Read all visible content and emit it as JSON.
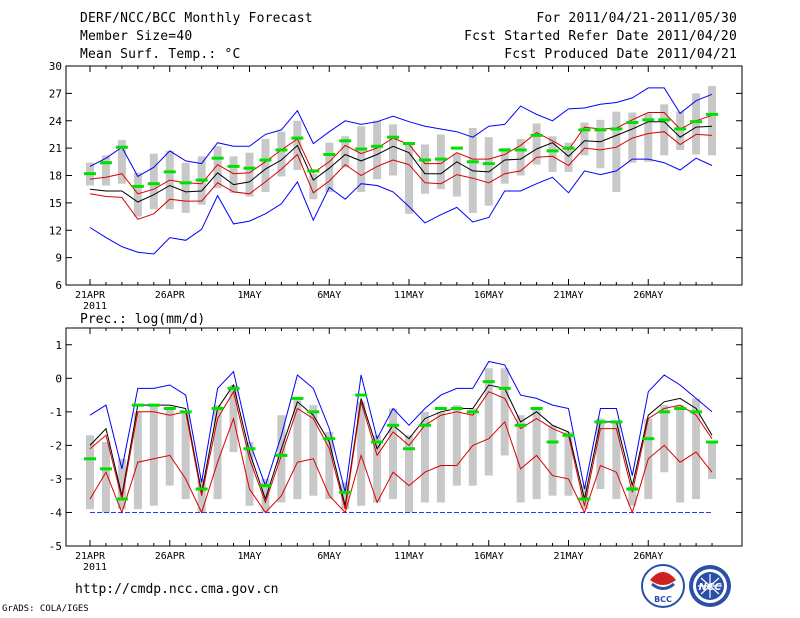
{
  "header": {
    "title": "DERF/NCC/BCC Monthly Forecast",
    "member_size": "Member Size=40",
    "variable": "Mean Surf. Temp.: °C",
    "period": "For 2011/04/21-2011/05/30",
    "started": "Fcst Started Refer Date 2011/04/20",
    "produced": "Fcst Produced Date 2011/04/21"
  },
  "footer": {
    "url": "http://cmdp.ncc.cma.gov.cn",
    "credit": "GrADS: COLA/IGES"
  },
  "logos": {
    "bcc": "BCC",
    "ncc": "NCC"
  },
  "colors": {
    "max_line": "#0000ff",
    "mean_line": "#000000",
    "spread_line": "#dc0000",
    "median_mark": "#00e000",
    "box": "#c8c8c8"
  },
  "chart_data": [
    {
      "type": "line",
      "name": "temperature",
      "ylabel": "Mean Surf. Temp.: °C",
      "ylim": [
        6,
        30
      ],
      "yticks": [
        6,
        9,
        12,
        15,
        18,
        21,
        24,
        27,
        30
      ],
      "xticks": [
        "21APR",
        "26APR",
        "1MAY",
        "6MAY",
        "11MAY",
        "16MAY",
        "21MAY",
        "26MAY"
      ],
      "xtick_days": [
        0,
        5,
        10,
        15,
        20,
        25,
        30,
        35
      ],
      "year_label": "2011",
      "days": 40,
      "series": [
        {
          "name": "max",
          "values": [
            12.3,
            11.2,
            10.2,
            9.6,
            9.4,
            11.2,
            10.9,
            12.1,
            15.8,
            12.7,
            13.0,
            13.8,
            14.9,
            17.3,
            13.1,
            16.7,
            15.4,
            17.1,
            16.9,
            16.2,
            14.6,
            12.8,
            13.7,
            14.5,
            12.9,
            13.4,
            16.3,
            16.3,
            17.1,
            17.8,
            16.1,
            18.5,
            18.1,
            18.5,
            19.8,
            19.8,
            19.4,
            18.6,
            19.9,
            19.1
          ]
        },
        {
          "name": "upper",
          "values": [
            19.0,
            19.9,
            21.1,
            17.9,
            18.9,
            20.7,
            19.6,
            19.3,
            21.6,
            21.2,
            21.2,
            22.5,
            23.0,
            25.1,
            21.5,
            22.8,
            24.0,
            23.6,
            23.9,
            24.5,
            23.9,
            23.4,
            23.1,
            22.8,
            22.2,
            23.4,
            23.6,
            25.6,
            24.7,
            24.0,
            25.3,
            25.4,
            25.8,
            26.0,
            26.5,
            27.6,
            27.6,
            24.8,
            26.2,
            26.9
          ]
        },
        {
          "name": "mean_plus",
          "values": [
            17.6,
            17.8,
            18.2,
            16.0,
            16.5,
            17.5,
            17.2,
            17.1,
            19.2,
            18.2,
            18.3,
            19.5,
            20.8,
            22.0,
            18.3,
            19.5,
            21.3,
            20.4,
            21.0,
            22.1,
            21.4,
            19.3,
            19.3,
            20.5,
            19.8,
            19.8,
            20.3,
            21.3,
            22.7,
            21.8,
            20.8,
            23.3,
            23.1,
            23.2,
            24.1,
            24.9,
            24.9,
            23.1,
            24.0,
            24.6
          ]
        },
        {
          "name": "mean",
          "values": [
            16.5,
            16.3,
            16.3,
            15.1,
            15.9,
            16.9,
            16.2,
            16.3,
            18.3,
            17.0,
            17.3,
            18.7,
            19.7,
            21.3,
            17.5,
            18.8,
            20.3,
            19.6,
            20.3,
            21.2,
            20.5,
            18.2,
            18.2,
            19.5,
            18.5,
            18.4,
            19.7,
            19.8,
            20.9,
            21.6,
            20.1,
            21.8,
            21.7,
            22.4,
            23.1,
            23.9,
            23.9,
            22.2,
            23.3,
            23.4
          ]
        },
        {
          "name": "mean_minus",
          "values": [
            16.0,
            15.7,
            15.6,
            13.2,
            13.8,
            15.4,
            15.2,
            15.2,
            17.2,
            16.2,
            16.0,
            17.3,
            18.7,
            20.3,
            16.1,
            17.4,
            19.2,
            18.0,
            19.0,
            19.7,
            19.2,
            17.2,
            17.1,
            18.1,
            17.7,
            17.2,
            18.2,
            18.5,
            20.0,
            20.1,
            19.1,
            21.0,
            20.8,
            21.1,
            22.1,
            22.6,
            22.8,
            21.4,
            22.5,
            22.4
          ]
        }
      ],
      "boxes": [
        [
          16.9,
          19.4
        ],
        [
          16.9,
          20.2
        ],
        [
          17.1,
          21.9
        ],
        [
          13.5,
          18.3
        ],
        [
          14.3,
          20.4
        ],
        [
          14.3,
          20.7
        ],
        [
          13.9,
          19.4
        ],
        [
          14.8,
          20.1
        ],
        [
          16.6,
          21.2
        ],
        [
          16.1,
          20.1
        ],
        [
          15.7,
          20.5
        ],
        [
          16.2,
          22.0
        ],
        [
          17.9,
          22.8
        ],
        [
          18.6,
          24.0
        ],
        [
          15.4,
          18.2
        ],
        [
          16.2,
          21.6
        ],
        [
          18.9,
          22.3
        ],
        [
          16.2,
          23.4
        ],
        [
          17.6,
          24.0
        ],
        [
          18.0,
          23.6
        ],
        [
          13.8,
          21.4
        ],
        [
          16.0,
          21.4
        ],
        [
          16.5,
          22.5
        ],
        [
          15.7,
          20.4
        ],
        [
          13.9,
          23.2
        ],
        [
          14.7,
          22.2
        ],
        [
          17.1,
          21.0
        ],
        [
          18.0,
          22.0
        ],
        [
          19.2,
          23.7
        ],
        [
          18.4,
          22.3
        ],
        [
          18.4,
          21.6
        ],
        [
          20.2,
          23.8
        ],
        [
          18.8,
          24.1
        ],
        [
          16.2,
          25.0
        ],
        [
          19.4,
          24.9
        ],
        [
          19.5,
          24.8
        ],
        [
          20.2,
          25.8
        ],
        [
          20.8,
          25.0
        ],
        [
          20.3,
          27.0
        ],
        [
          20.2,
          27.8
        ]
      ],
      "medians": [
        18.2,
        19.4,
        21.1,
        16.8,
        17.1,
        18.4,
        17.2,
        17.5,
        19.9,
        19.0,
        18.8,
        19.7,
        20.8,
        22.1,
        18.5,
        20.3,
        21.8,
        20.9,
        21.2,
        22.2,
        21.5,
        19.7,
        19.8,
        21.0,
        19.5,
        19.3,
        20.8,
        20.8,
        22.4,
        20.7,
        21.0,
        23.0,
        23.0,
        23.1,
        23.8,
        24.1,
        24.1,
        23.1,
        23.9,
        24.7
      ]
    },
    {
      "type": "line",
      "name": "precipitation",
      "ylabel": "Prec.: log(mm/d)",
      "ylim": [
        -5,
        1.5
      ],
      "yticks": [
        -5,
        -4,
        -3,
        -2,
        -1,
        0,
        1
      ],
      "xticks": [
        "21APR",
        "26APR",
        "1MAY",
        "6MAY",
        "11MAY",
        "16MAY",
        "21MAY",
        "26MAY"
      ],
      "xtick_days": [
        0,
        5,
        10,
        15,
        20,
        25,
        30,
        35
      ],
      "year_label": "2011",
      "days": 40,
      "baseline": -4,
      "series": [
        {
          "name": "upper",
          "values": [
            -1.1,
            -0.8,
            -2.7,
            -0.3,
            -0.3,
            -0.2,
            -0.5,
            -3.1,
            -0.3,
            0.2,
            -1.9,
            -3.2,
            -1.7,
            0.1,
            -0.3,
            -1.5,
            -3.4,
            0.1,
            -1.8,
            -0.9,
            -1.4,
            -0.9,
            -0.5,
            -0.3,
            -0.3,
            0.5,
            0.4,
            -0.5,
            -0.6,
            -0.8,
            -0.9,
            -3.3,
            -0.9,
            -0.9,
            -2.9,
            -0.4,
            0.1,
            -0.2,
            -0.6,
            -1.0
          ]
        },
        {
          "name": "mean",
          "values": [
            -2.0,
            -1.5,
            -3.5,
            -0.8,
            -0.8,
            -0.8,
            -0.9,
            -3.4,
            -0.9,
            -0.2,
            -2.2,
            -3.6,
            -2.1,
            -0.7,
            -1.1,
            -1.9,
            -3.8,
            -0.6,
            -2.1,
            -1.4,
            -1.8,
            -1.2,
            -1.0,
            -0.9,
            -0.9,
            -0.2,
            -0.3,
            -1.3,
            -1.0,
            -1.4,
            -1.6,
            -3.6,
            -1.3,
            -1.3,
            -3.2,
            -1.1,
            -0.7,
            -0.6,
            -0.9,
            -1.7
          ]
        },
        {
          "name": "mean_minus",
          "values": [
            -2.1,
            -1.7,
            -3.6,
            -1.0,
            -1.0,
            -1.1,
            -1.0,
            -3.5,
            -1.2,
            -0.4,
            -2.4,
            -3.7,
            -2.3,
            -0.9,
            -1.2,
            -2.1,
            -3.9,
            -0.7,
            -2.3,
            -1.6,
            -2.0,
            -1.4,
            -1.1,
            -1.0,
            -1.1,
            -0.4,
            -0.6,
            -1.5,
            -1.2,
            -1.5,
            -1.7,
            -3.8,
            -1.5,
            -1.5,
            -3.4,
            -1.2,
            -0.9,
            -0.8,
            -1.1,
            -1.8
          ]
        },
        {
          "name": "lower",
          "values": [
            -3.6,
            -2.8,
            -4.0,
            -2.5,
            -2.4,
            -2.3,
            -3.0,
            -4.0,
            -2.5,
            -1.2,
            -3.3,
            -4.0,
            -3.5,
            -2.5,
            -2.4,
            -3.5,
            -4.0,
            -2.3,
            -3.7,
            -2.8,
            -3.2,
            -2.8,
            -2.6,
            -2.6,
            -2.0,
            -1.8,
            -1.3,
            -2.7,
            -2.3,
            -2.9,
            -3.0,
            -4.0,
            -2.6,
            -2.8,
            -4.0,
            -2.4,
            -2.0,
            -2.5,
            -2.2,
            -2.8
          ]
        }
      ],
      "boxes": [
        [
          -3.9,
          -1.7
        ],
        [
          -4.0,
          -1.9
        ],
        [
          -3.9,
          -2.4
        ],
        [
          -3.9,
          -1.0
        ],
        [
          -3.8,
          -0.8
        ],
        [
          -3.2,
          -0.9
        ],
        [
          -3.6,
          -1.0
        ],
        [
          -4.0,
          -3.0
        ],
        [
          -3.6,
          -0.8
        ],
        [
          -2.2,
          -0.2
        ],
        [
          -3.8,
          -1.9
        ],
        [
          -4.0,
          -3.0
        ],
        [
          -3.7,
          -1.1
        ],
        [
          -3.6,
          -0.6
        ],
        [
          -3.5,
          -0.8
        ],
        [
          -3.6,
          -1.6
        ],
        [
          -3.9,
          -3.1
        ],
        [
          -3.8,
          -0.7
        ],
        [
          -3.7,
          -1.7
        ],
        [
          -3.6,
          -0.9
        ],
        [
          -4.0,
          -1.7
        ],
        [
          -3.7,
          -1.0
        ],
        [
          -3.7,
          -1.0
        ],
        [
          -3.2,
          -0.8
        ],
        [
          -3.2,
          -0.9
        ],
        [
          -2.9,
          0.3
        ],
        [
          -2.3,
          0.3
        ],
        [
          -3.7,
          -1.1
        ],
        [
          -3.6,
          -0.9
        ],
        [
          -3.5,
          -1.4
        ],
        [
          -3.5,
          -1.6
        ],
        [
          -3.9,
          -3.2
        ],
        [
          -3.3,
          -1.2
        ],
        [
          -3.6,
          -1.3
        ],
        [
          -3.8,
          -3.2
        ],
        [
          -3.6,
          -1.2
        ],
        [
          -2.8,
          -0.8
        ],
        [
          -3.7,
          -0.8
        ],
        [
          -3.6,
          -0.6
        ],
        [
          -3.0,
          -1.9
        ]
      ],
      "medians": [
        -2.4,
        -2.7,
        -3.6,
        -0.8,
        -0.8,
        -0.9,
        -1.0,
        -3.3,
        -0.9,
        -0.3,
        -2.1,
        -3.2,
        -2.3,
        -0.6,
        -1.0,
        -1.8,
        -3.4,
        -0.5,
        -1.9,
        -1.4,
        -2.1,
        -1.4,
        -0.9,
        -0.9,
        -1.0,
        -0.1,
        -0.3,
        -1.4,
        -0.9,
        -1.9,
        -1.7,
        -3.6,
        -1.3,
        -1.3,
        -3.3,
        -1.8,
        -1.0,
        -0.9,
        -1.0,
        -1.9
      ]
    }
  ]
}
